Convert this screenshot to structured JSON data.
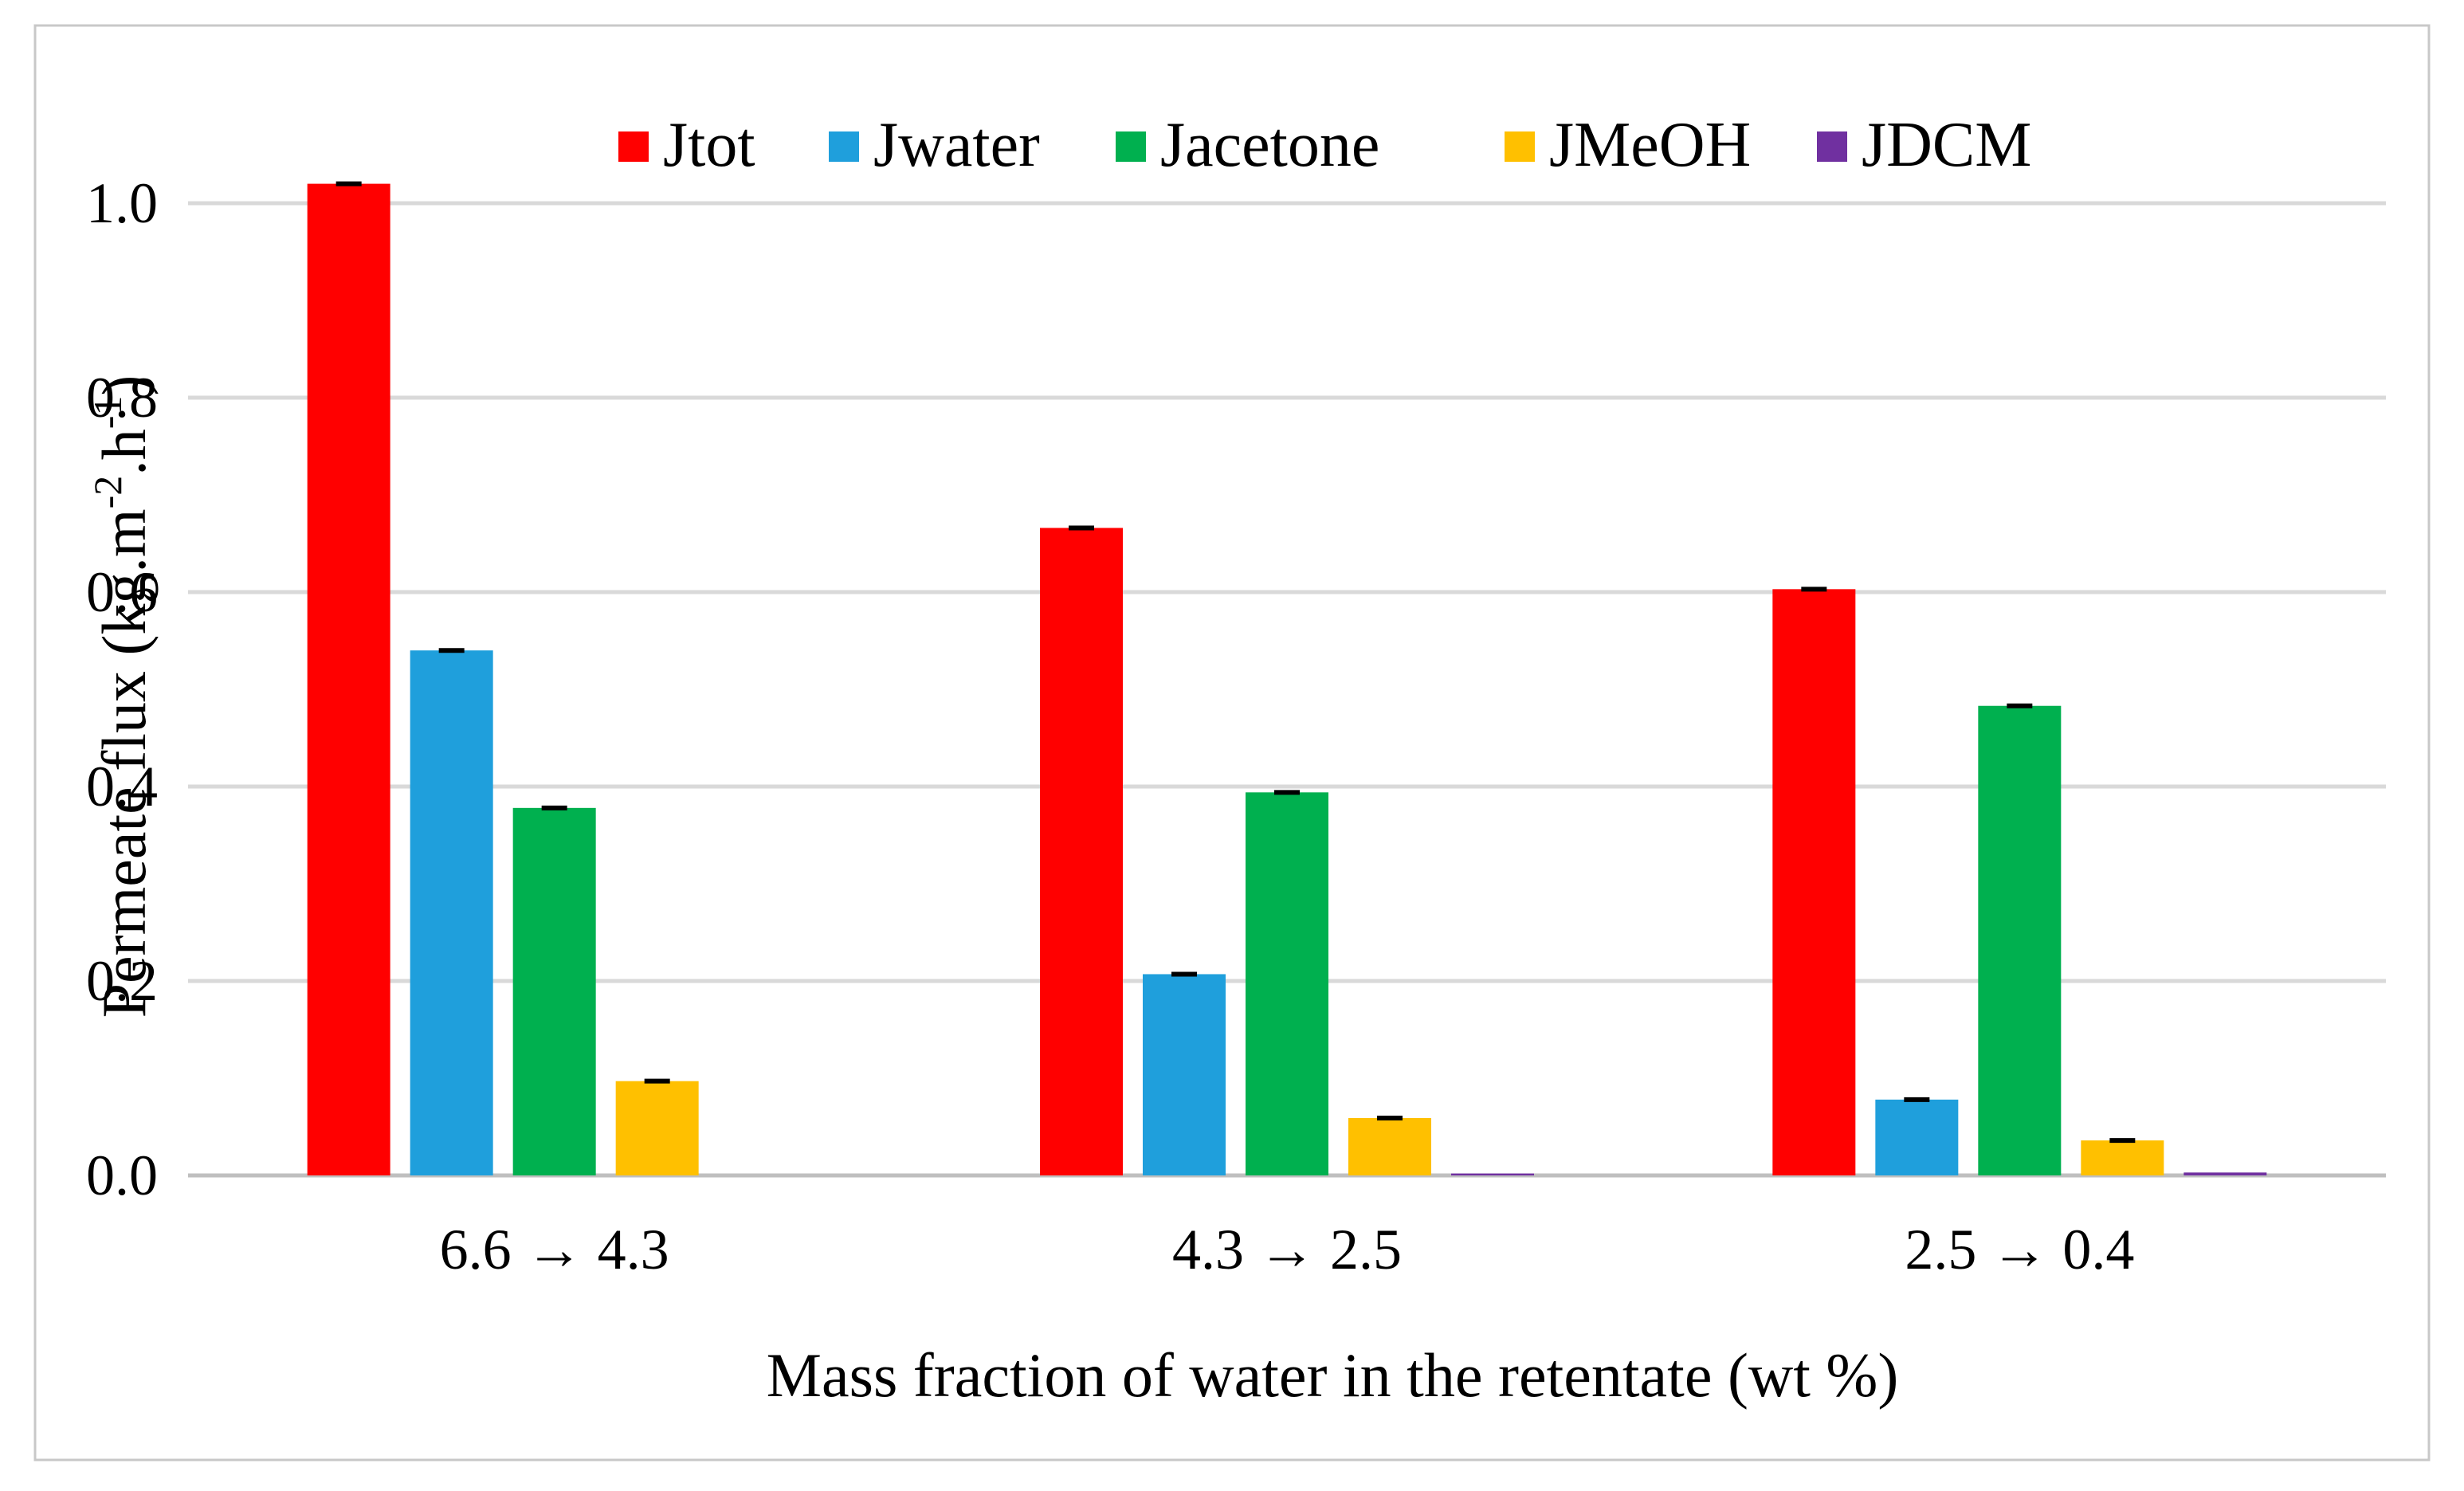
{
  "chart_data": {
    "type": "bar",
    "title": "",
    "xlabel": "Mass fraction of water in the retentate (wt %)",
    "ylabel": "Permeate flux (kg.m-2.h-1)",
    "ylabel_parts": {
      "lead": "Permeate flux (kg.m",
      "sup1": "-2",
      "mid": ".h",
      "sup2": "-1",
      "tail": ")"
    },
    "categories": [
      "6.6 → 4.3",
      "4.3 → 2.5",
      "2.5 → 0.4"
    ],
    "ylim": [
      0,
      1.1
    ],
    "yticks": [
      0.0,
      0.2,
      0.4,
      0.6,
      0.8,
      1.0
    ],
    "ytick_labels": [
      "0.0",
      "0.2",
      "0.4",
      "0.6",
      "0.8",
      "1.0"
    ],
    "grid": true,
    "legend_position": "top",
    "error_bars": true,
    "series": [
      {
        "name": "Jtot",
        "color": "#ff0000",
        "values": [
          1.02,
          0.666,
          0.603
        ]
      },
      {
        "name": "Jwater",
        "color": "#1f9fdc",
        "values": [
          0.54,
          0.207,
          0.078
        ]
      },
      {
        "name": "Jacetone",
        "color": "#00b04f",
        "values": [
          0.378,
          0.394,
          0.483
        ]
      },
      {
        "name": "JMeOH",
        "color": "#ffc000",
        "values": [
          0.097,
          0.059,
          0.036
        ]
      },
      {
        "name": "JDCM",
        "color": "#7030a0",
        "values": [
          0.0,
          0.002,
          0.003
        ]
      }
    ]
  },
  "colors": {
    "frame": "#c8c8c8",
    "grid": "#d9d9d9",
    "axis": "#bfbfbf",
    "errorbar": "#000000"
  }
}
